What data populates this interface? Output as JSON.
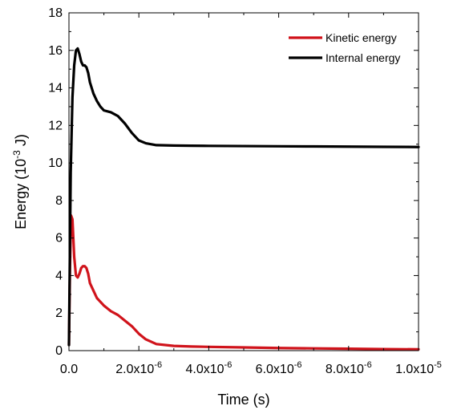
{
  "chart_data": {
    "type": "line",
    "title": "",
    "xlabel": "Time (s)",
    "ylabel_main": "Energy (10",
    "ylabel_sup": "-3",
    "ylabel_tail": " J)",
    "xlim": [
      0,
      1e-05
    ],
    "ylim": [
      0,
      18
    ],
    "grid": false,
    "legend_position": "top-right",
    "x_ticks": [
      {
        "value": 0,
        "mantissa": "0.0",
        "exp": ""
      },
      {
        "value": 2e-06,
        "mantissa": "2.0x10",
        "exp": "-6"
      },
      {
        "value": 4e-06,
        "mantissa": "4.0x10",
        "exp": "-6"
      },
      {
        "value": 6e-06,
        "mantissa": "6.0x10",
        "exp": "-6"
      },
      {
        "value": 8e-06,
        "mantissa": "8.0x10",
        "exp": "-6"
      },
      {
        "value": 1e-05,
        "mantissa": "1.0x10",
        "exp": "-5"
      }
    ],
    "y_ticks": [
      0,
      2,
      4,
      6,
      8,
      10,
      12,
      14,
      16,
      18
    ],
    "series": [
      {
        "name": "Kinetic energy",
        "color": "#d0131b",
        "x": [
          0,
          3e-08,
          6e-08,
          1e-07,
          1.5e-07,
          2e-07,
          2.5e-07,
          3e-07,
          3.5e-07,
          4e-07,
          4.5e-07,
          5e-07,
          5.5e-07,
          6e-07,
          7e-07,
          8e-07,
          9e-07,
          1e-06,
          1.2e-06,
          1.4e-06,
          1.6e-06,
          1.8e-06,
          2e-06,
          2.2e-06,
          2.5e-06,
          3e-06,
          3.5e-06,
          4e-06,
          5e-06,
          6e-06,
          7e-06,
          8e-06,
          9e-06,
          1e-05
        ],
        "y": [
          0.3,
          4.5,
          7.2,
          7.0,
          5.0,
          4.0,
          3.9,
          4.1,
          4.4,
          4.5,
          4.5,
          4.4,
          4.1,
          3.6,
          3.2,
          2.8,
          2.6,
          2.4,
          2.1,
          1.9,
          1.6,
          1.3,
          0.9,
          0.6,
          0.35,
          0.25,
          0.22,
          0.2,
          0.17,
          0.14,
          0.12,
          0.1,
          0.08,
          0.07
        ]
      },
      {
        "name": "Internal energy",
        "color": "#000000",
        "x": [
          0,
          5e-08,
          1e-07,
          1.5e-07,
          2e-07,
          2.5e-07,
          3e-07,
          3.5e-07,
          4e-07,
          4.5e-07,
          5e-07,
          5.5e-07,
          6e-07,
          7e-07,
          8e-07,
          9e-07,
          1e-06,
          1.2e-06,
          1.4e-06,
          1.6e-06,
          1.8e-06,
          2e-06,
          2.2e-06,
          2.5e-06,
          3e-06,
          3.5e-06,
          4e-06,
          5e-06,
          6e-06,
          7e-06,
          8e-06,
          9e-06,
          1e-05
        ],
        "y": [
          0.3,
          9.5,
          13.5,
          15.2,
          16.0,
          16.1,
          15.8,
          15.4,
          15.2,
          15.2,
          15.1,
          14.8,
          14.3,
          13.7,
          13.3,
          13.0,
          12.8,
          12.7,
          12.5,
          12.1,
          11.6,
          11.2,
          11.05,
          10.95,
          10.93,
          10.92,
          10.91,
          10.9,
          10.89,
          10.88,
          10.87,
          10.86,
          10.85
        ]
      }
    ]
  }
}
